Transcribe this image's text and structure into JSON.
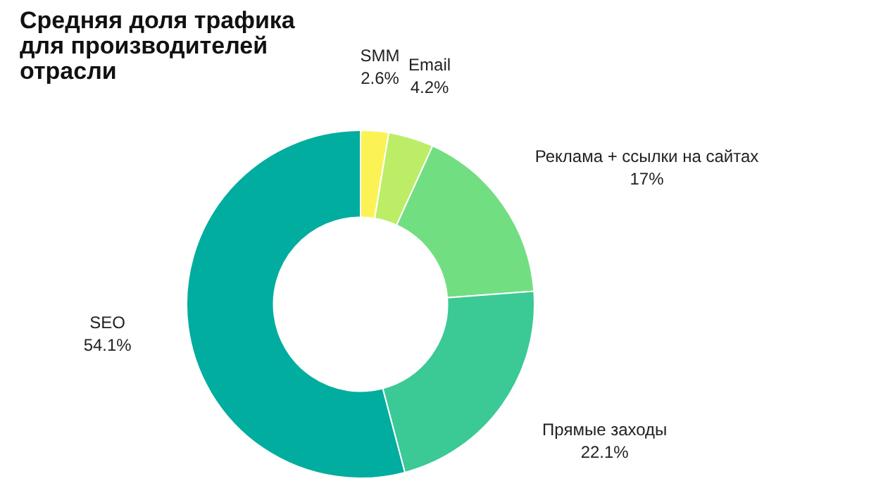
{
  "chart_data": {
    "type": "donut",
    "title": "Средняя доля трафика для производителей отрасли",
    "categories": [
      "SMM",
      "Email",
      "Реклама + ссылки на сайтах",
      "Прямые заходы",
      "SEO"
    ],
    "values": [
      2.6,
      4.2,
      17,
      22.1,
      54.1
    ],
    "colors": [
      "#fbf356",
      "#bbee66",
      "#72de82",
      "#3bc995",
      "#00ad9e"
    ],
    "value_labels": [
      "2.6%",
      "4.2%",
      "17%",
      "22.1%",
      "54.1%"
    ],
    "legend": false
  }
}
